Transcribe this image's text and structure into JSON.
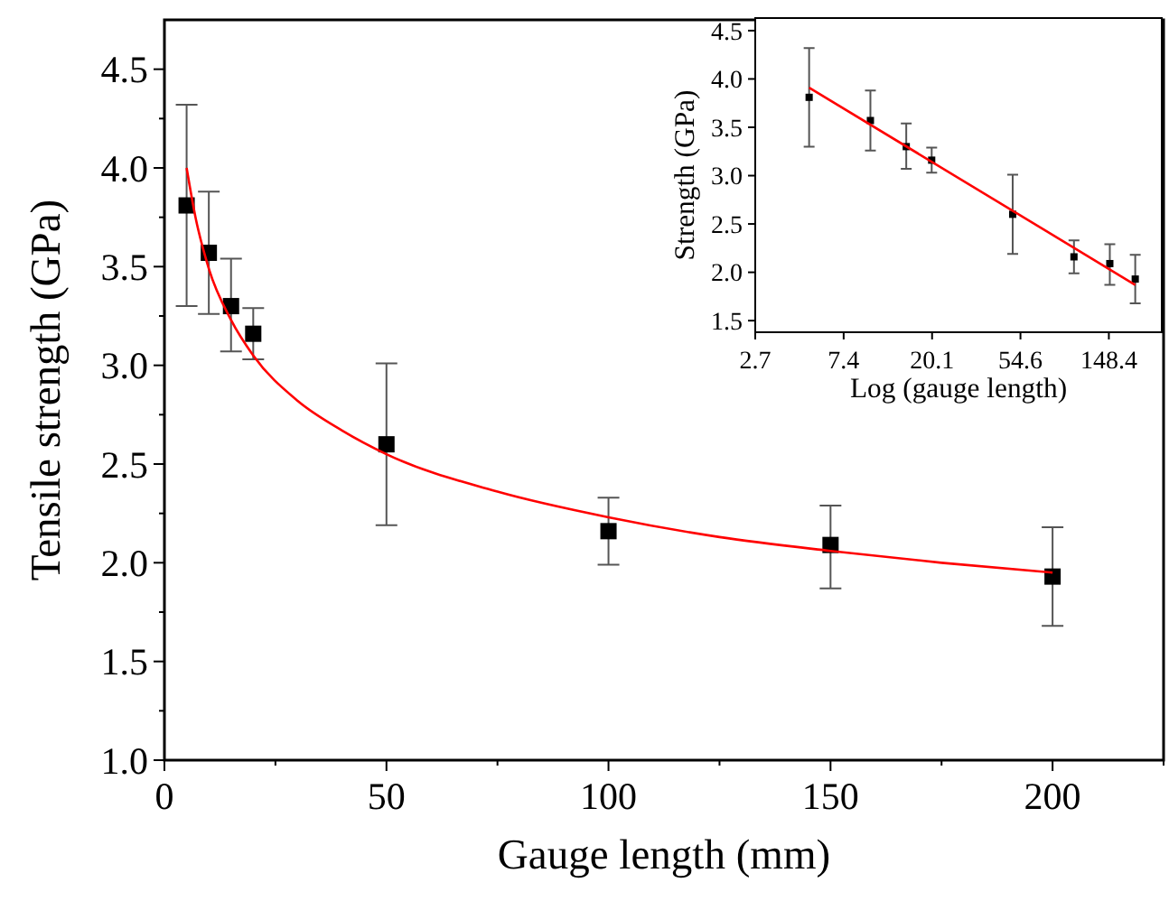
{
  "chart_data": [
    {
      "type": "scatter",
      "xlabel": "Gauge length (mm)",
      "ylabel": "Tensile strength (GPa)",
      "xlim": [
        0,
        225
      ],
      "ylim": [
        1,
        4.75
      ],
      "xticks": [
        0,
        {
          "value": 25,
          "label": null
        },
        50,
        {
          "value": 75,
          "label": null
        },
        100,
        {
          "value": 125,
          "label": null
        },
        150,
        {
          "value": 175,
          "label": null
        },
        200,
        {
          "value": 225,
          "label": null
        }
      ],
      "yticks": [
        {
          "value": 1,
          "label": "1.0"
        },
        {
          "value": 1.25,
          "label": null
        },
        {
          "value": 1.5,
          "label": "1.5"
        },
        {
          "value": 1.75,
          "label": null
        },
        {
          "value": 2,
          "label": "2.0"
        },
        {
          "value": 2.25,
          "label": null
        },
        {
          "value": 2.5,
          "label": "2.5"
        },
        {
          "value": 2.75,
          "label": null
        },
        {
          "value": 3,
          "label": "3.0"
        },
        {
          "value": 3.25,
          "label": null
        },
        {
          "value": 3.5,
          "label": "3.5"
        },
        {
          "value": 3.75,
          "label": null
        },
        {
          "value": 4,
          "label": "4.0"
        },
        {
          "value": 4.25,
          "label": null
        },
        {
          "value": 4.5,
          "label": "4.5"
        }
      ],
      "series": [
        {
          "marker": "square",
          "color": "#000000",
          "x": [
            5,
            10,
            15,
            20,
            50,
            100,
            150,
            200
          ],
          "values": [
            3.81,
            3.57,
            3.3,
            3.16,
            2.6,
            2.16,
            2.09,
            1.93
          ],
          "errors": [
            [
              3.3,
              4.32
            ],
            [
              3.26,
              3.88
            ],
            [
              3.07,
              3.54
            ],
            [
              3.03,
              3.29
            ],
            [
              2.19,
              3.01
            ],
            [
              1.99,
              2.33
            ],
            [
              1.87,
              2.29
            ],
            [
              1.68,
              2.18
            ]
          ]
        },
        {
          "type": "line",
          "marker": "none",
          "color": "#ff0000",
          "x": [
            5,
            7,
            10,
            15,
            20,
            30,
            40,
            50,
            75,
            100,
            125,
            150,
            175,
            200
          ],
          "values": [
            4.0,
            3.75,
            3.49,
            3.23,
            3.05,
            2.82,
            2.67,
            2.55,
            2.36,
            2.23,
            2.13,
            2.06,
            2.0,
            1.95
          ]
        }
      ]
    },
    {
      "type": "scatter",
      "xlabel": "Log (gauge length)",
      "ylabel": "Strength (GPa)",
      "log": "x",
      "xlim": [
        2.718,
        270
      ],
      "ylim": [
        1.38,
        4.63
      ],
      "xticks": [
        {
          "value": 2.718,
          "label": "2.7"
        },
        {
          "value": 7.389,
          "label": "7.4"
        },
        {
          "value": 20.09,
          "label": "20.1"
        },
        {
          "value": 54.6,
          "label": "54.6"
        },
        {
          "value": 148.4,
          "label": "148.4"
        }
      ],
      "yticks": [
        1.5,
        {
          "value": 2,
          "label": "2.0"
        },
        2.5,
        {
          "value": 3,
          "label": "3.0"
        },
        3.5,
        {
          "value": 4,
          "label": "4.0"
        },
        4.5
      ],
      "series": [
        {
          "marker": "square",
          "color": "#000000",
          "x": [
            5,
            10,
            15,
            20,
            50,
            100,
            150,
            200
          ],
          "values": [
            3.81,
            3.57,
            3.3,
            3.16,
            2.6,
            2.16,
            2.09,
            1.93
          ],
          "errors": [
            [
              3.3,
              4.32
            ],
            [
              3.26,
              3.88
            ],
            [
              3.07,
              3.54
            ],
            [
              3.03,
              3.29
            ],
            [
              2.19,
              3.01
            ],
            [
              1.99,
              2.33
            ],
            [
              1.87,
              2.29
            ],
            [
              1.68,
              2.18
            ]
          ]
        },
        {
          "type": "line",
          "marker": "none",
          "color": "#ff0000",
          "x": [
            5,
            200
          ],
          "values": [
            3.91,
            1.87
          ]
        }
      ]
    }
  ]
}
